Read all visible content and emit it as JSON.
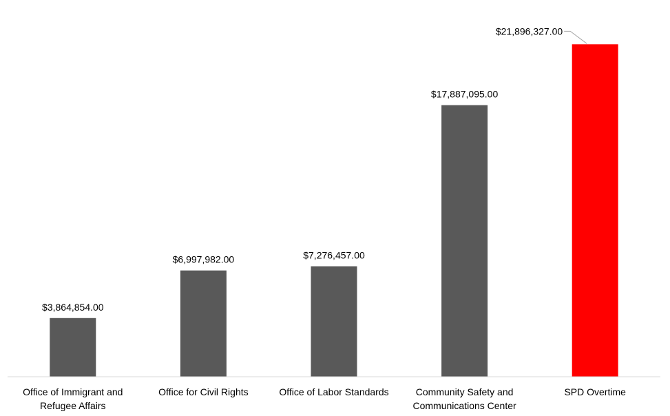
{
  "chart_data": {
    "type": "bar",
    "title": "",
    "xlabel": "",
    "ylabel": "",
    "ylim": [
      0,
      23000000
    ],
    "grid": false,
    "legend": "none",
    "categories": [
      [
        "Office of Immigrant and",
        "Refugee Affairs"
      ],
      [
        "Office for Civil Rights"
      ],
      [
        "Office of Labor Standards"
      ],
      [
        "Community Safety and",
        "Communications Center"
      ],
      [
        "SPD Overtime"
      ]
    ],
    "values": [
      3864854,
      6997982,
      7276457,
      17887095,
      21896327
    ],
    "data_labels": [
      "$3,864,854.00",
      "$6,997,982.00",
      "$7,276,457.00",
      "$17,887,095.00",
      "$21,896,327.00"
    ],
    "colors": {
      "default": "#595959",
      "highlight": "#ff0000",
      "axis": "#d9d9d9",
      "leader": "#a6a6a6"
    },
    "highlight_index": 4
  }
}
